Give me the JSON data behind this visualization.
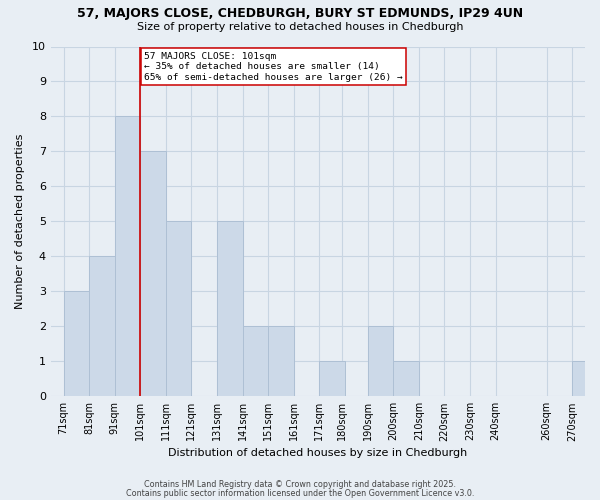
{
  "title": "57, MAJORS CLOSE, CHEDBURGH, BURY ST EDMUNDS, IP29 4UN",
  "subtitle": "Size of property relative to detached houses in Chedburgh",
  "xlabel": "Distribution of detached houses by size in Chedburgh",
  "ylabel": "Number of detached properties",
  "bar_color": "#ccd9e8",
  "bar_edgecolor": "#aec0d4",
  "grid_color": "#c8d5e2",
  "background_color": "#e8eef4",
  "bins": [
    "71sqm",
    "81sqm",
    "91sqm",
    "101sqm",
    "111sqm",
    "121sqm",
    "131sqm",
    "141sqm",
    "151sqm",
    "161sqm",
    "171sqm",
    "180sqm",
    "190sqm",
    "200sqm",
    "210sqm",
    "220sqm",
    "230sqm",
    "240sqm",
    "260sqm",
    "270sqm"
  ],
  "values": [
    3,
    4,
    8,
    7,
    5,
    0,
    5,
    2,
    2,
    0,
    1,
    0,
    2,
    1,
    0,
    0,
    0,
    0,
    0,
    1
  ],
  "bin_width": 10,
  "xlim": [
    66,
    275
  ],
  "marker_x": 101,
  "marker_color": "#cc0000",
  "annotation_title": "57 MAJORS CLOSE: 101sqm",
  "annotation_line1": "← 35% of detached houses are smaller (14)",
  "annotation_line2": "65% of semi-detached houses are larger (26) →",
  "ylim": [
    0,
    10
  ],
  "yticks": [
    0,
    1,
    2,
    3,
    4,
    5,
    6,
    7,
    8,
    9,
    10
  ],
  "xtick_positions": [
    71,
    81,
    91,
    101,
    111,
    121,
    131,
    141,
    151,
    161,
    171,
    180,
    190,
    200,
    210,
    220,
    230,
    240,
    260,
    270
  ],
  "footer1": "Contains HM Land Registry data © Crown copyright and database right 2025.",
  "footer2": "Contains public sector information licensed under the Open Government Licence v3.0."
}
